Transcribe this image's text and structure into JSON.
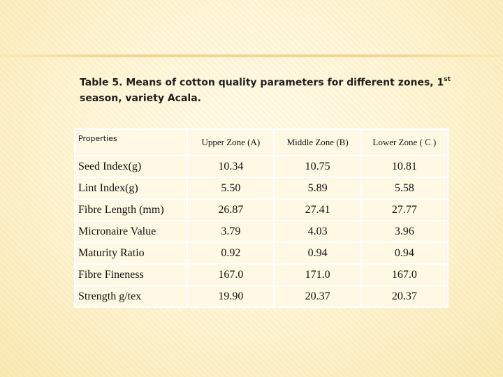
{
  "caption": {
    "line1_prefix": "Table 5. Means of cotton quality parameters for different zones, 1",
    "line1_sup": "st",
    "line2": "season, variety Acala."
  },
  "table": {
    "headers": [
      "Properties",
      "Upper Zone (A)",
      "Middle Zone (B)",
      "Lower Zone ( C )"
    ],
    "rows": [
      [
        "Seed Index(g)",
        "10.34",
        "10.75",
        "10.81"
      ],
      [
        "Lint Index(g)",
        "5.50",
        "5.89",
        "5.58"
      ],
      [
        "Fibre Length (mm)",
        "26.87",
        "27.41",
        "27.77"
      ],
      [
        "Micronaire Value",
        "3.79",
        "4.03",
        "3.96"
      ],
      [
        "Maturity Ratio",
        "0.92",
        "0.94",
        "0.94"
      ],
      [
        "Fibre Fineness",
        "167.0",
        "171.0",
        "167.0"
      ],
      [
        "Strength g/tex",
        "19.90",
        "20.37",
        "20.37"
      ]
    ]
  }
}
